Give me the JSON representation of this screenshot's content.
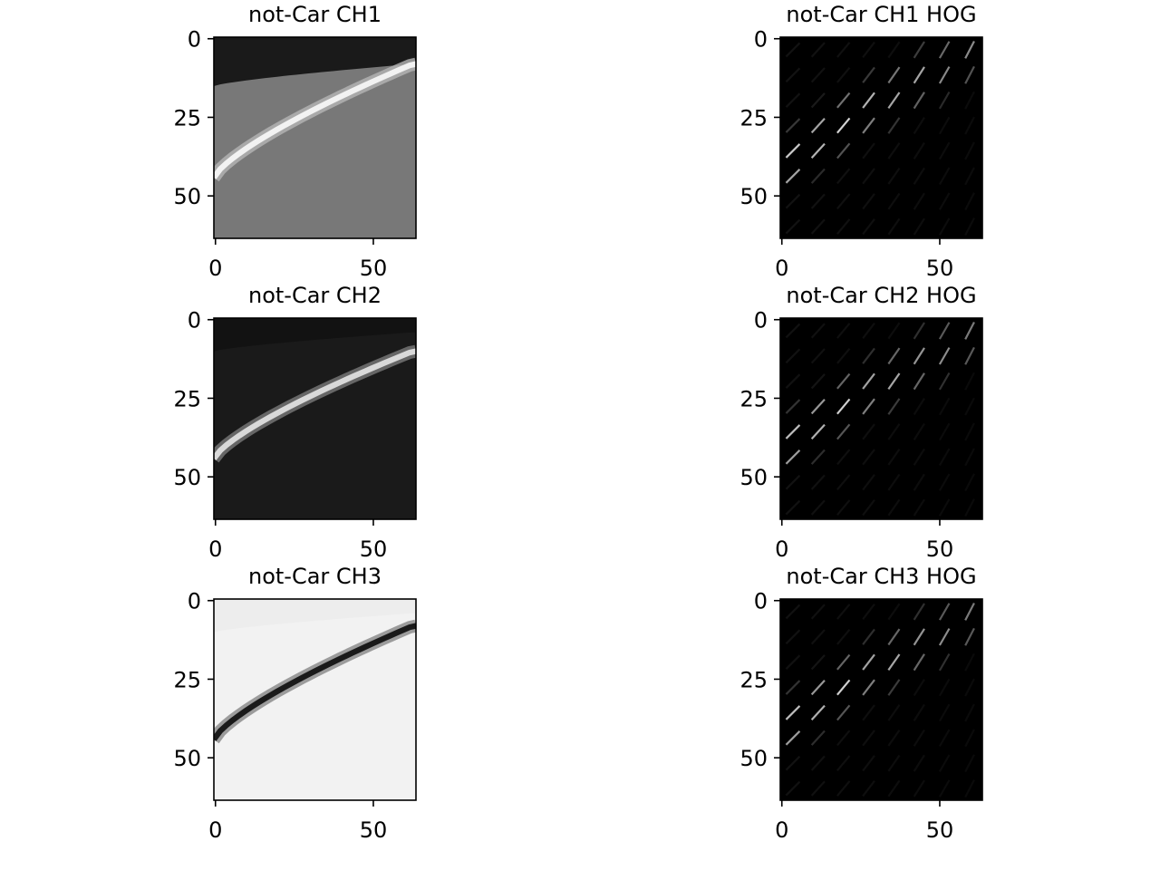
{
  "chart_data": [
    {
      "type": "heatmap",
      "title": "not-Car CH1",
      "xlim": [
        -0.5,
        63.5
      ],
      "ylim": [
        63.5,
        -0.5
      ],
      "xticks": [
        0,
        50
      ],
      "yticks": [
        0,
        25,
        50
      ],
      "xtick_labels": [
        "0",
        "50"
      ],
      "ytick_labels": [
        "0",
        "25",
        "50"
      ],
      "image": {
        "kind": "channel",
        "colormap": "gray",
        "background_level": 0.47,
        "top_band_level": 0.1,
        "road_edge_rows": [
          15,
          8
        ],
        "line_rows": [
          44,
          8
        ],
        "line_level": 0.95
      }
    },
    {
      "type": "heatmap",
      "title": "not-Car CH1 HOG",
      "xlim": [
        -0.5,
        63.5
      ],
      "ylim": [
        63.5,
        -0.5
      ],
      "xticks": [
        0,
        50
      ],
      "yticks": [
        0,
        25,
        50
      ],
      "xtick_labels": [
        "0",
        "50"
      ],
      "ytick_labels": [
        "0",
        "25",
        "50"
      ],
      "image": {
        "kind": "hog",
        "colormap": "gray",
        "background_level": 0.0,
        "line_rows": [
          44,
          4
        ],
        "peak_level": 1.0
      }
    },
    {
      "type": "heatmap",
      "title": "not-Car CH2",
      "xlim": [
        -0.5,
        63.5
      ],
      "ylim": [
        63.5,
        -0.5
      ],
      "xticks": [
        0,
        50
      ],
      "yticks": [
        0,
        25,
        50
      ],
      "xtick_labels": [
        "0",
        "50"
      ],
      "ytick_labels": [
        "0",
        "25",
        "50"
      ],
      "image": {
        "kind": "channel",
        "colormap": "gray",
        "background_level": 0.1,
        "top_band_level": 0.07,
        "road_edge_rows": [
          10,
          4
        ],
        "line_rows": [
          44,
          10
        ],
        "line_level": 0.85
      }
    },
    {
      "type": "heatmap",
      "title": "not-Car CH2 HOG",
      "xlim": [
        -0.5,
        63.5
      ],
      "ylim": [
        63.5,
        -0.5
      ],
      "xticks": [
        0,
        50
      ],
      "yticks": [
        0,
        25,
        50
      ],
      "xtick_labels": [
        "0",
        "50"
      ],
      "ytick_labels": [
        "0",
        "25",
        "50"
      ],
      "image": {
        "kind": "hog",
        "colormap": "gray",
        "background_level": 0.0,
        "line_rows": [
          44,
          5
        ],
        "peak_level": 0.95
      }
    },
    {
      "type": "heatmap",
      "title": "not-Car CH3",
      "xlim": [
        -0.5,
        63.5
      ],
      "ylim": [
        63.5,
        -0.5
      ],
      "xticks": [
        0,
        50
      ],
      "yticks": [
        0,
        25,
        50
      ],
      "xtick_labels": [
        "0",
        "50"
      ],
      "ytick_labels": [
        "0",
        "25",
        "50"
      ],
      "image": {
        "kind": "channel",
        "colormap": "gray",
        "background_level": 0.95,
        "top_band_level": 0.93,
        "road_edge_rows": [
          10,
          4
        ],
        "line_rows": [
          44,
          8
        ],
        "line_level": 0.1
      }
    },
    {
      "type": "heatmap",
      "title": "not-Car CH3 HOG",
      "xlim": [
        -0.5,
        63.5
      ],
      "ylim": [
        63.5,
        -0.5
      ],
      "xticks": [
        0,
        50
      ],
      "yticks": [
        0,
        25,
        50
      ],
      "xtick_labels": [
        "0",
        "50"
      ],
      "ytick_labels": [
        "0",
        "25",
        "50"
      ],
      "image": {
        "kind": "hog",
        "colormap": "gray",
        "background_level": 0.0,
        "line_rows": [
          44,
          5
        ],
        "peak_level": 0.95
      }
    }
  ]
}
